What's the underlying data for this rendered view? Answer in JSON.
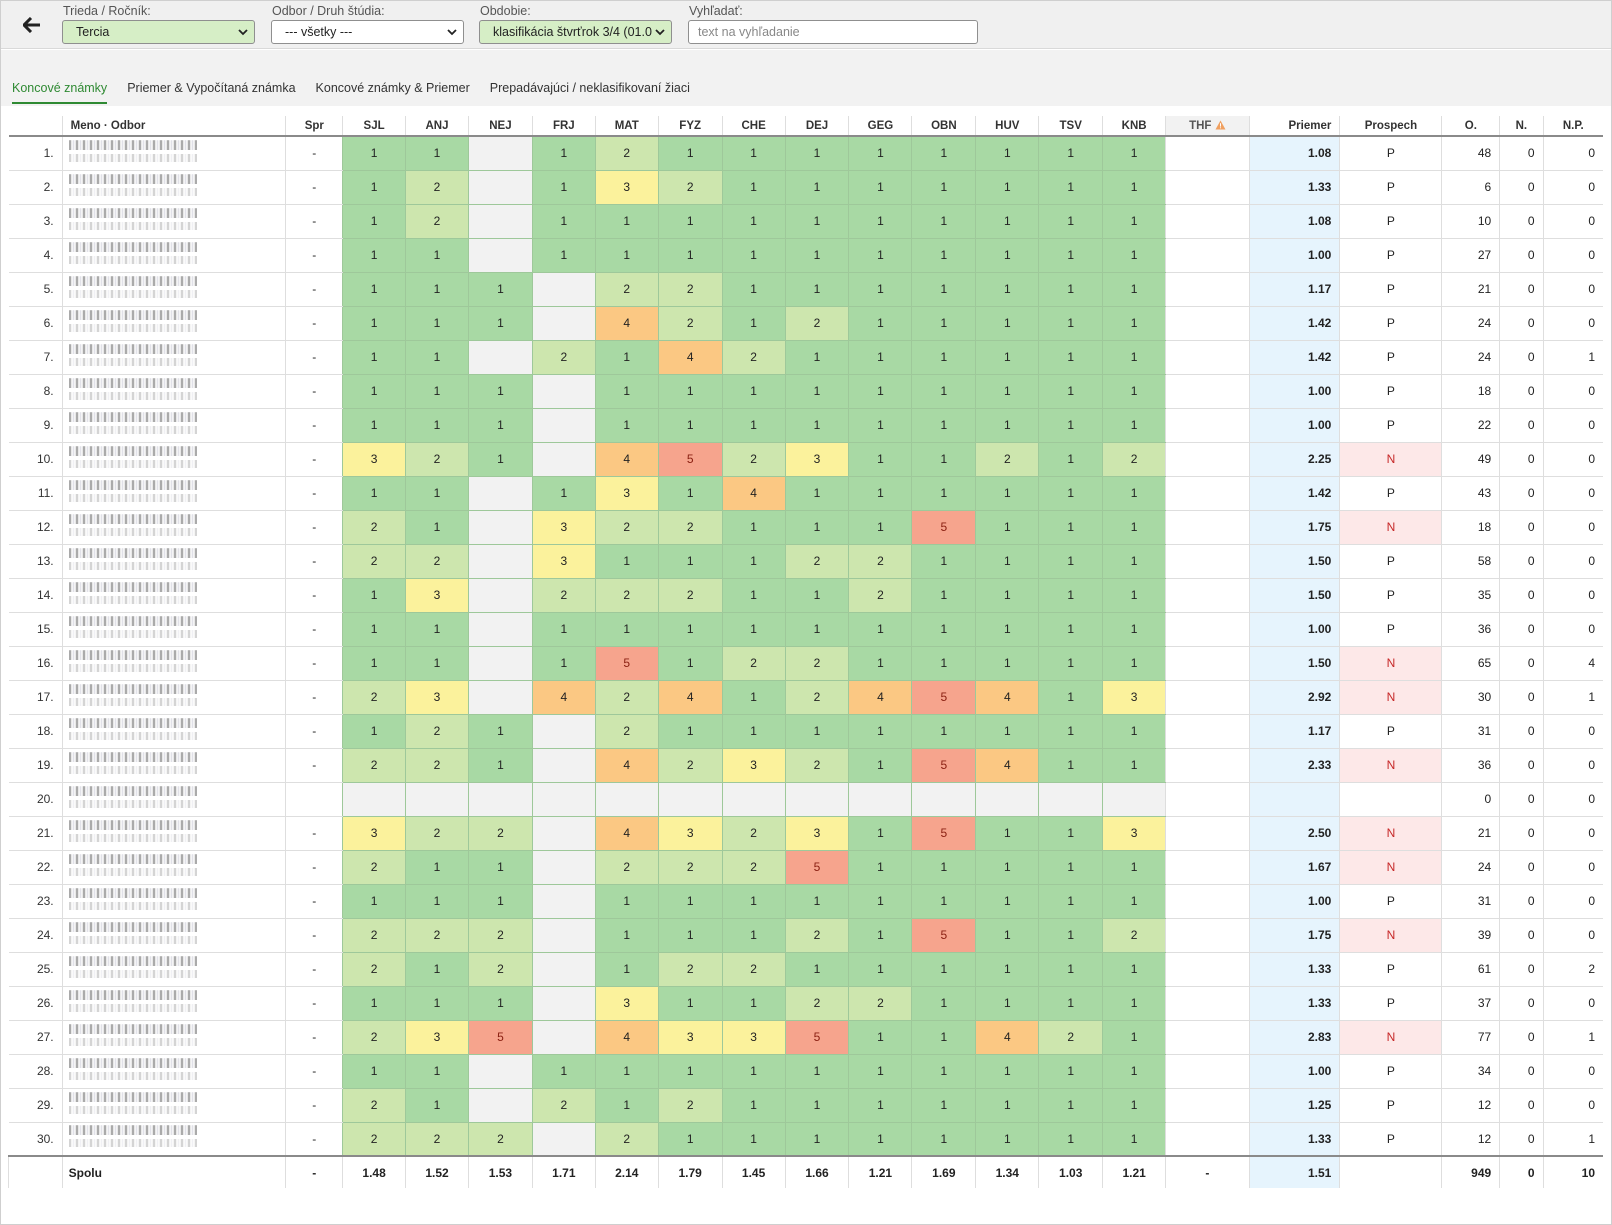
{
  "toolbar": {
    "class_label": "Trieda / Ročník:",
    "class_value": "Tercia",
    "branch_label": "Odbor / Druh štúdia:",
    "branch_value": "--- všetky ---",
    "period_label": "Obdobie:",
    "period_value": "klasifikácia štvrťrok 3/4 (01.0",
    "search_label": "Vyhľadať:",
    "search_placeholder": "text na vyhľadanie"
  },
  "tabs": [
    {
      "label": "Koncové známky",
      "active": true
    },
    {
      "label": "Priemer & Vypočítaná známka",
      "active": false
    },
    {
      "label": "Koncové známky & Priemer",
      "active": false
    },
    {
      "label": "Prepadávajúci / neklasifikovaní žiaci",
      "active": false
    }
  ],
  "columns": {
    "name": "Meno · Odbor",
    "spr": "Spr",
    "subjects": [
      "SJL",
      "ANJ",
      "NEJ",
      "FRJ",
      "MAT",
      "FYZ",
      "CHE",
      "DEJ",
      "GEG",
      "OBN",
      "HUV",
      "TSV",
      "KNB"
    ],
    "thf": "THF",
    "avg": "Priemer",
    "result": "Prospech",
    "o": "O.",
    "n": "N.",
    "np": "N.P."
  },
  "grade_colors": {
    "1": "#a8d9a4",
    "2": "#cde6ae",
    "3": "#fbf29c",
    "4": "#fbc883",
    "5": "#f6a48d",
    "empty": "#f2f2f2"
  },
  "rows": [
    {
      "n": "1.",
      "spr": "-",
      "g": [
        1,
        1,
        null,
        1,
        2,
        1,
        1,
        1,
        1,
        1,
        1,
        1,
        1
      ],
      "thf": "",
      "avg": "1.08",
      "ps": "P",
      "o": "48",
      "nn": "0",
      "np": "0"
    },
    {
      "n": "2.",
      "spr": "-",
      "g": [
        1,
        2,
        null,
        1,
        3,
        2,
        1,
        1,
        1,
        1,
        1,
        1,
        1
      ],
      "thf": "",
      "avg": "1.33",
      "ps": "P",
      "o": "6",
      "nn": "0",
      "np": "0"
    },
    {
      "n": "3.",
      "spr": "-",
      "g": [
        1,
        2,
        null,
        1,
        1,
        1,
        1,
        1,
        1,
        1,
        1,
        1,
        1
      ],
      "thf": "",
      "avg": "1.08",
      "ps": "P",
      "o": "10",
      "nn": "0",
      "np": "0"
    },
    {
      "n": "4.",
      "spr": "-",
      "g": [
        1,
        1,
        null,
        1,
        1,
        1,
        1,
        1,
        1,
        1,
        1,
        1,
        1
      ],
      "thf": "",
      "avg": "1.00",
      "ps": "P",
      "o": "27",
      "nn": "0",
      "np": "0"
    },
    {
      "n": "5.",
      "spr": "-",
      "g": [
        1,
        1,
        1,
        null,
        2,
        2,
        1,
        1,
        1,
        1,
        1,
        1,
        1
      ],
      "thf": "",
      "avg": "1.17",
      "ps": "P",
      "o": "21",
      "nn": "0",
      "np": "0"
    },
    {
      "n": "6.",
      "spr": "-",
      "g": [
        1,
        1,
        1,
        null,
        4,
        2,
        1,
        2,
        1,
        1,
        1,
        1,
        1
      ],
      "thf": "",
      "avg": "1.42",
      "ps": "P",
      "o": "24",
      "nn": "0",
      "np": "0"
    },
    {
      "n": "7.",
      "spr": "-",
      "g": [
        1,
        1,
        null,
        2,
        1,
        4,
        2,
        1,
        1,
        1,
        1,
        1,
        1
      ],
      "thf": "",
      "avg": "1.42",
      "ps": "P",
      "o": "24",
      "nn": "0",
      "np": "1"
    },
    {
      "n": "8.",
      "spr": "-",
      "g": [
        1,
        1,
        1,
        null,
        1,
        1,
        1,
        1,
        1,
        1,
        1,
        1,
        1
      ],
      "thf": "",
      "avg": "1.00",
      "ps": "P",
      "o": "18",
      "nn": "0",
      "np": "0"
    },
    {
      "n": "9.",
      "spr": "-",
      "g": [
        1,
        1,
        1,
        null,
        1,
        1,
        1,
        1,
        1,
        1,
        1,
        1,
        1
      ],
      "thf": "",
      "avg": "1.00",
      "ps": "P",
      "o": "22",
      "nn": "0",
      "np": "0"
    },
    {
      "n": "10.",
      "spr": "-",
      "g": [
        3,
        2,
        1,
        null,
        4,
        5,
        2,
        3,
        1,
        1,
        2,
        1,
        2
      ],
      "thf": "",
      "avg": "2.25",
      "ps": "N",
      "o": "49",
      "nn": "0",
      "np": "0"
    },
    {
      "n": "11.",
      "spr": "-",
      "g": [
        1,
        1,
        null,
        1,
        3,
        1,
        4,
        1,
        1,
        1,
        1,
        1,
        1
      ],
      "thf": "",
      "avg": "1.42",
      "ps": "P",
      "o": "43",
      "nn": "0",
      "np": "0"
    },
    {
      "n": "12.",
      "spr": "-",
      "g": [
        2,
        1,
        null,
        3,
        2,
        2,
        1,
        1,
        1,
        5,
        1,
        1,
        1
      ],
      "thf": "",
      "avg": "1.75",
      "ps": "N",
      "o": "18",
      "nn": "0",
      "np": "0"
    },
    {
      "n": "13.",
      "spr": "-",
      "g": [
        2,
        2,
        null,
        3,
        1,
        1,
        1,
        2,
        2,
        1,
        1,
        1,
        1
      ],
      "thf": "",
      "avg": "1.50",
      "ps": "P",
      "o": "58",
      "nn": "0",
      "np": "0"
    },
    {
      "n": "14.",
      "spr": "-",
      "g": [
        1,
        3,
        null,
        2,
        2,
        2,
        1,
        1,
        2,
        1,
        1,
        1,
        1
      ],
      "thf": "",
      "avg": "1.50",
      "ps": "P",
      "o": "35",
      "nn": "0",
      "np": "0"
    },
    {
      "n": "15.",
      "spr": "-",
      "g": [
        1,
        1,
        null,
        1,
        1,
        1,
        1,
        1,
        1,
        1,
        1,
        1,
        1
      ],
      "thf": "",
      "avg": "1.00",
      "ps": "P",
      "o": "36",
      "nn": "0",
      "np": "0"
    },
    {
      "n": "16.",
      "spr": "-",
      "g": [
        1,
        1,
        null,
        1,
        5,
        1,
        2,
        2,
        1,
        1,
        1,
        1,
        1
      ],
      "thf": "",
      "avg": "1.50",
      "ps": "N",
      "o": "65",
      "nn": "0",
      "np": "4"
    },
    {
      "n": "17.",
      "spr": "-",
      "g": [
        2,
        3,
        null,
        4,
        2,
        4,
        1,
        2,
        4,
        5,
        4,
        1,
        3
      ],
      "thf": "",
      "avg": "2.92",
      "ps": "N",
      "o": "30",
      "nn": "0",
      "np": "1"
    },
    {
      "n": "18.",
      "spr": "-",
      "g": [
        1,
        2,
        1,
        null,
        2,
        1,
        1,
        1,
        1,
        1,
        1,
        1,
        1
      ],
      "thf": "",
      "avg": "1.17",
      "ps": "P",
      "o": "31",
      "nn": "0",
      "np": "0"
    },
    {
      "n": "19.",
      "spr": "-",
      "g": [
        2,
        2,
        1,
        null,
        4,
        2,
        3,
        2,
        1,
        5,
        4,
        1,
        1
      ],
      "thf": "",
      "avg": "2.33",
      "ps": "N",
      "o": "36",
      "nn": "0",
      "np": "0"
    },
    {
      "n": "20.",
      "spr": "",
      "g": [
        null,
        null,
        null,
        null,
        null,
        null,
        null,
        null,
        null,
        null,
        null,
        null,
        null
      ],
      "thf": "",
      "avg": "",
      "ps": "",
      "o": "0",
      "nn": "0",
      "np": "0"
    },
    {
      "n": "21.",
      "spr": "-",
      "g": [
        3,
        2,
        2,
        null,
        4,
        3,
        2,
        3,
        1,
        5,
        1,
        1,
        3
      ],
      "thf": "",
      "avg": "2.50",
      "ps": "N",
      "o": "21",
      "nn": "0",
      "np": "0"
    },
    {
      "n": "22.",
      "spr": "-",
      "g": [
        2,
        1,
        1,
        null,
        2,
        2,
        2,
        5,
        1,
        1,
        1,
        1,
        1
      ],
      "thf": "",
      "avg": "1.67",
      "ps": "N",
      "o": "24",
      "nn": "0",
      "np": "0"
    },
    {
      "n": "23.",
      "spr": "-",
      "g": [
        1,
        1,
        1,
        null,
        1,
        1,
        1,
        1,
        1,
        1,
        1,
        1,
        1
      ],
      "thf": "",
      "avg": "1.00",
      "ps": "P",
      "o": "31",
      "nn": "0",
      "np": "0"
    },
    {
      "n": "24.",
      "spr": "-",
      "g": [
        2,
        2,
        2,
        null,
        1,
        1,
        1,
        2,
        1,
        5,
        1,
        1,
        2
      ],
      "thf": "",
      "avg": "1.75",
      "ps": "N",
      "o": "39",
      "nn": "0",
      "np": "0"
    },
    {
      "n": "25.",
      "spr": "-",
      "g": [
        2,
        1,
        2,
        null,
        1,
        2,
        2,
        1,
        1,
        1,
        1,
        1,
        1
      ],
      "thf": "",
      "avg": "1.33",
      "ps": "P",
      "o": "61",
      "nn": "0",
      "np": "2"
    },
    {
      "n": "26.",
      "spr": "-",
      "g": [
        1,
        1,
        1,
        null,
        3,
        1,
        1,
        2,
        2,
        1,
        1,
        1,
        1
      ],
      "thf": "",
      "avg": "1.33",
      "ps": "P",
      "o": "37",
      "nn": "0",
      "np": "0"
    },
    {
      "n": "27.",
      "spr": "-",
      "g": [
        2,
        3,
        5,
        null,
        4,
        3,
        3,
        5,
        1,
        1,
        4,
        2,
        1
      ],
      "thf": "",
      "avg": "2.83",
      "ps": "N",
      "o": "77",
      "nn": "0",
      "np": "1"
    },
    {
      "n": "28.",
      "spr": "-",
      "g": [
        1,
        1,
        null,
        1,
        1,
        1,
        1,
        1,
        1,
        1,
        1,
        1,
        1
      ],
      "thf": "",
      "avg": "1.00",
      "ps": "P",
      "o": "34",
      "nn": "0",
      "np": "0"
    },
    {
      "n": "29.",
      "spr": "-",
      "g": [
        2,
        1,
        null,
        2,
        1,
        2,
        1,
        1,
        1,
        1,
        1,
        1,
        1
      ],
      "thf": "",
      "avg": "1.25",
      "ps": "P",
      "o": "12",
      "nn": "0",
      "np": "0"
    },
    {
      "n": "30.",
      "spr": "-",
      "g": [
        2,
        2,
        2,
        null,
        2,
        1,
        1,
        1,
        1,
        1,
        1,
        1,
        1
      ],
      "thf": "",
      "avg": "1.33",
      "ps": "P",
      "o": "12",
      "nn": "0",
      "np": "1"
    }
  ],
  "totals": {
    "label": "Spolu",
    "spr": "-",
    "subjects": [
      "1.48",
      "1.52",
      "1.53",
      "1.71",
      "2.14",
      "1.79",
      "1.45",
      "1.66",
      "1.21",
      "1.69",
      "1.34",
      "1.03",
      "1.21"
    ],
    "thf": "-",
    "avg": "1.51",
    "result": "",
    "o": "949",
    "n": "0",
    "np": "10"
  }
}
